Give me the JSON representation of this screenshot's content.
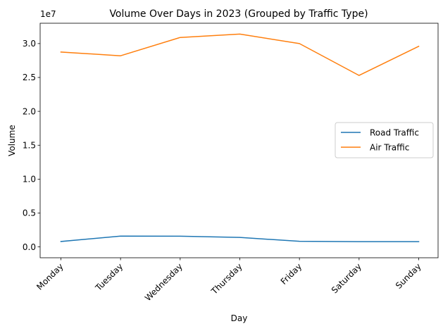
{
  "chart_data": {
    "type": "line",
    "title": "Volume Over Days in 2023 (Grouped by Traffic Type)",
    "xlabel": "Day",
    "ylabel": "Volume",
    "offset_text": "1e7",
    "categories": [
      "Monday",
      "Tuesday",
      "Wednesday",
      "Thursday",
      "Friday",
      "Saturday",
      "Sunday"
    ],
    "yticks": [
      0.0,
      0.5,
      1.0,
      1.5,
      2.0,
      2.5,
      3.0
    ],
    "ytick_labels": [
      "0.0",
      "0.5",
      "1.0",
      "1.5",
      "2.0",
      "2.5",
      "3.0"
    ],
    "ylim": [
      -0.16,
      3.3
    ],
    "y_scale_note": "values in units of 1e7",
    "grid": false,
    "legend_position": "center-right",
    "series": [
      {
        "name": "Road Traffic",
        "color": "#1f77b4",
        "values": [
          0.08,
          0.16,
          0.158,
          0.14,
          0.083,
          0.078,
          0.078
        ]
      },
      {
        "name": "Air Traffic",
        "color": "#ff7f0e",
        "values": [
          2.875,
          2.82,
          3.09,
          3.14,
          3.0,
          2.53,
          2.96
        ]
      }
    ]
  }
}
